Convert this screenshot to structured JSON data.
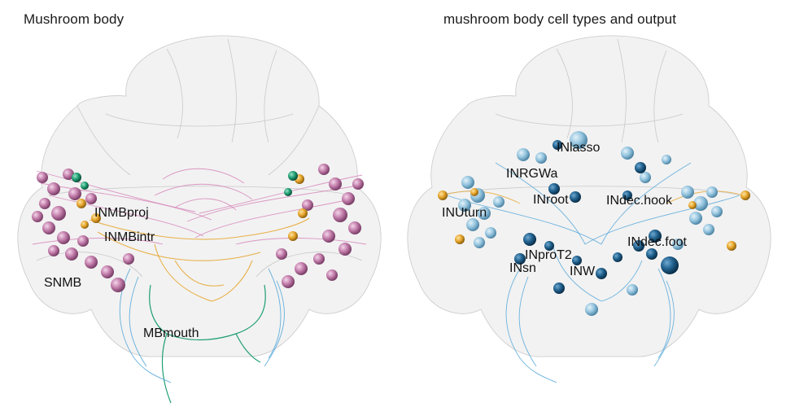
{
  "panels": [
    {
      "title": "Mushroom body",
      "labels": [
        {
          "text": "INMBproj",
          "kind": "cell-type"
        },
        {
          "text": "INMBintr",
          "kind": "cell-type"
        },
        {
          "text": "SNMB",
          "kind": "cell-type"
        },
        {
          "text": "MBmouth",
          "kind": "cell-type"
        }
      ]
    },
    {
      "title": "mushroom body cell types and output",
      "labels": [
        {
          "text": "INlasso",
          "kind": "cell-type"
        },
        {
          "text": "INRGWa",
          "kind": "cell-type"
        },
        {
          "text": "INroot",
          "kind": "cell-type"
        },
        {
          "text": "INdec.hook",
          "kind": "cell-type"
        },
        {
          "text": "INUturn",
          "kind": "cell-type"
        },
        {
          "text": "INproT2",
          "kind": "cell-type"
        },
        {
          "text": "INdec.foot",
          "kind": "cell-type"
        },
        {
          "text": "INsn",
          "kind": "cell-type"
        },
        {
          "text": "INW",
          "kind": "cell-type"
        }
      ]
    }
  ],
  "colors": {
    "brain_mesh": "#d8d8d8",
    "snmb_pink": "#c07aa8",
    "sensory_pink_neurite": "#d47fb7",
    "inmb_orange": "#e6a52a",
    "mbmouth_green": "#1e9e73",
    "cell_blue_light": "#94c4de",
    "cell_blue_dark": "#1f5f8b",
    "neurite_blue": "#4ba3d8"
  }
}
